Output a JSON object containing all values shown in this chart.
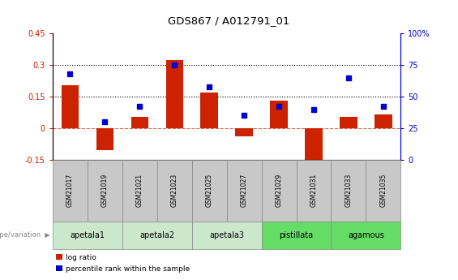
{
  "title": "GDS867 / A012791_01",
  "samples": [
    "GSM21017",
    "GSM21019",
    "GSM21021",
    "GSM21023",
    "GSM21025",
    "GSM21027",
    "GSM21029",
    "GSM21031",
    "GSM21033",
    "GSM21035"
  ],
  "log_ratio": [
    0.205,
    -0.105,
    0.055,
    0.325,
    0.17,
    -0.04,
    0.13,
    -0.175,
    0.055,
    0.065
  ],
  "percentile_rank": [
    68,
    30,
    42,
    75,
    58,
    35,
    42,
    40,
    65,
    42
  ],
  "ylim_left": [
    -0.15,
    0.45
  ],
  "ylim_right": [
    0,
    100
  ],
  "yticks_left": [
    -0.15,
    0.0,
    0.15,
    0.3,
    0.45
  ],
  "yticks_right": [
    0,
    25,
    50,
    75,
    100
  ],
  "hlines": [
    0.15,
    0.3
  ],
  "bar_color": "#CC2200",
  "dot_color": "#0000CC",
  "zero_line_color": "#CC2200",
  "groups": [
    {
      "label": "apetala1",
      "indices": [
        0,
        1
      ],
      "color": "#cce8cc"
    },
    {
      "label": "apetala2",
      "indices": [
        2,
        3
      ],
      "color": "#cce8cc"
    },
    {
      "label": "apetala3",
      "indices": [
        4,
        5
      ],
      "color": "#cce8cc"
    },
    {
      "label": "pistillata",
      "indices": [
        6,
        7
      ],
      "color": "#66dd66"
    },
    {
      "label": "agamous",
      "indices": [
        8,
        9
      ],
      "color": "#66dd66"
    }
  ],
  "legend_bar_label": "log ratio",
  "legend_dot_label": "percentile rank within the sample",
  "genotype_label": "genotype/variation"
}
